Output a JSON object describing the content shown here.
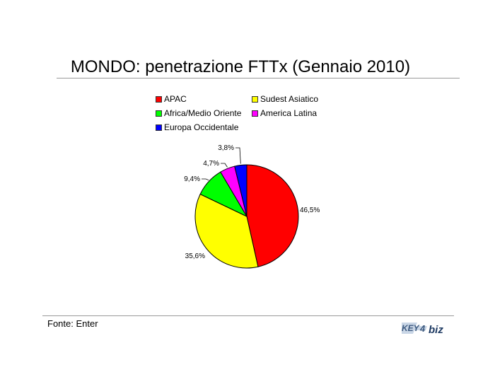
{
  "chart_data": {
    "type": "pie",
    "title": "MONDO: penetrazione FTTx (Gennaio 2010)",
    "categories": [
      "APAC",
      "Sudest Asiatico",
      "Africa/Medio Oriente",
      "America Latina",
      "Europa Occidentale"
    ],
    "values": [
      46.5,
      35.6,
      9.4,
      4.7,
      3.8
    ],
    "data_labels": [
      "46,5%",
      "35,6%",
      "9,4%",
      "4,7%",
      "3,8%"
    ],
    "colors": [
      "#ff0000",
      "#ffff00",
      "#00ff00",
      "#ff00ff",
      "#0000ff"
    ],
    "legend_position": "top"
  },
  "footer": {
    "source": "Fonte: Enter",
    "logo_text": "KEY4biz"
  }
}
